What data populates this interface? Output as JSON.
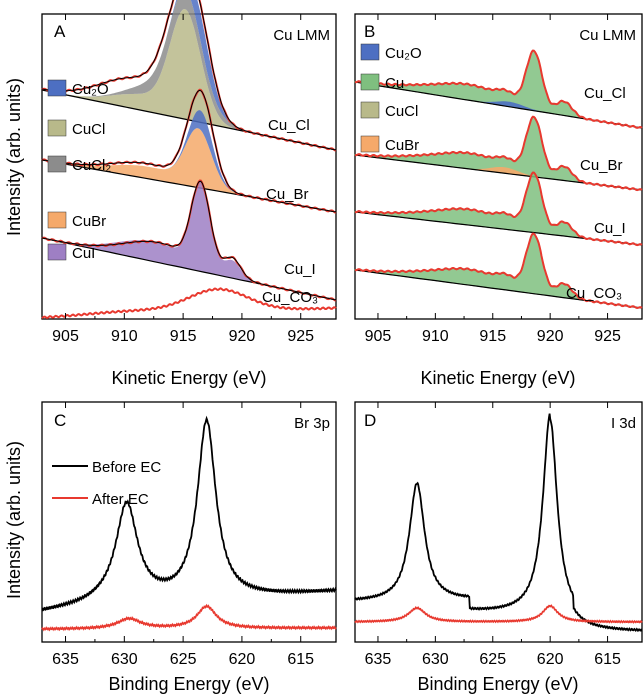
{
  "figure": {
    "ylabel": "Intensity (arb. units)",
    "top_xlabel": "Kinetic Energy (eV)",
    "bottom_xlabel": "Binding Energy (eV)"
  },
  "chart_data": [
    {
      "panel": "A",
      "type": "line",
      "title": "Cu LMM",
      "xlabel": "Kinetic Energy (eV)",
      "ylabel": "Intensity (arb. units)",
      "xlim": [
        903,
        928
      ],
      "xticks": [
        905,
        910,
        915,
        920,
        925
      ],
      "legend": [
        {
          "label": "Cu₂O",
          "color": "#4d6fc2"
        },
        {
          "label": "CuCl",
          "color": "#b8b98a"
        },
        {
          "label": "CuCl₂",
          "color": "#8c8c8c"
        },
        {
          "label": "CuBr",
          "color": "#f5a96a"
        },
        {
          "label": "CuI",
          "color": "#9e7fc4"
        }
      ],
      "series_labels": [
        "Cu_Cl",
        "Cu_Br",
        "Cu_I",
        "Cu_CO₃"
      ],
      "components": [
        {
          "sample": "Cu_Cl",
          "phase": "CuCl",
          "center": 915.2,
          "height": 1.0,
          "width": 1.3
        },
        {
          "sample": "Cu_Cl",
          "phase": "Cu₂O",
          "center": 916.6,
          "height": 0.35,
          "width": 1.0
        },
        {
          "sample": "Cu_Cl",
          "phase": "CuCl₂",
          "center": 914.5,
          "height": 0.2,
          "width": 2.5
        },
        {
          "sample": "Cu_Br",
          "phase": "CuBr",
          "center": 916.3,
          "height": 0.7,
          "width": 1.1
        },
        {
          "sample": "Cu_Br",
          "phase": "Cu₂O",
          "center": 916.7,
          "height": 0.35,
          "width": 0.9
        },
        {
          "sample": "Cu_I",
          "phase": "CuI",
          "center": 916.5,
          "height": 1.0,
          "width": 0.8
        },
        {
          "sample": "Cu_CO₃",
          "phase": "none",
          "center": 918.0,
          "height": 0.25,
          "width": 2.5
        }
      ]
    },
    {
      "panel": "B",
      "type": "line",
      "title": "Cu LMM",
      "xlabel": "Kinetic Energy (eV)",
      "xlim": [
        903,
        928
      ],
      "xticks": [
        905,
        910,
        915,
        920,
        925
      ],
      "legend": [
        {
          "label": "Cu₂O",
          "color": "#4d6fc2"
        },
        {
          "label": "Cu",
          "color": "#7fbf7f"
        },
        {
          "label": "CuCl",
          "color": "#b8b98a"
        },
        {
          "label": "CuBr",
          "color": "#f5a96a"
        }
      ],
      "series_labels": [
        "Cu_Cl",
        "Cu_Br",
        "Cu_I",
        "Cu_CO₃"
      ],
      "components": [
        {
          "sample": "all",
          "phase": "Cu",
          "center": 918.6,
          "height": 1.0,
          "width": 0.7
        }
      ]
    },
    {
      "panel": "C",
      "type": "line",
      "title": "Br 3p",
      "xlabel": "Binding Energy (eV)",
      "ylabel": "Intensity (arb. units)",
      "xlim": [
        637,
        612
      ],
      "xticks": [
        635,
        630,
        625,
        620,
        615
      ],
      "series": [
        {
          "name": "Before EC",
          "color": "#000000",
          "peaks": [
            {
              "center": 629.8,
              "height": 0.6
            },
            {
              "center": 623.0,
              "height": 1.0
            }
          ]
        },
        {
          "name": "After EC",
          "color": "#e8392f",
          "peaks": [
            {
              "center": 629.5,
              "height": 0.1
            },
            {
              "center": 623.0,
              "height": 0.2
            }
          ]
        }
      ]
    },
    {
      "panel": "D",
      "type": "line",
      "title": "I 3d",
      "xlabel": "Binding Energy (eV)",
      "xlim": [
        637,
        612
      ],
      "xticks": [
        635,
        630,
        625,
        620,
        615
      ],
      "series": [
        {
          "name": "Before EC",
          "color": "#000000",
          "peaks": [
            {
              "center": 631.5,
              "height": 0.7
            },
            {
              "center": 620.0,
              "height": 1.0
            }
          ]
        },
        {
          "name": "After EC",
          "color": "#e8392f",
          "peaks": [
            {
              "center": 631.5,
              "height": 0.1
            },
            {
              "center": 620.0,
              "height": 0.12
            }
          ]
        }
      ]
    }
  ]
}
